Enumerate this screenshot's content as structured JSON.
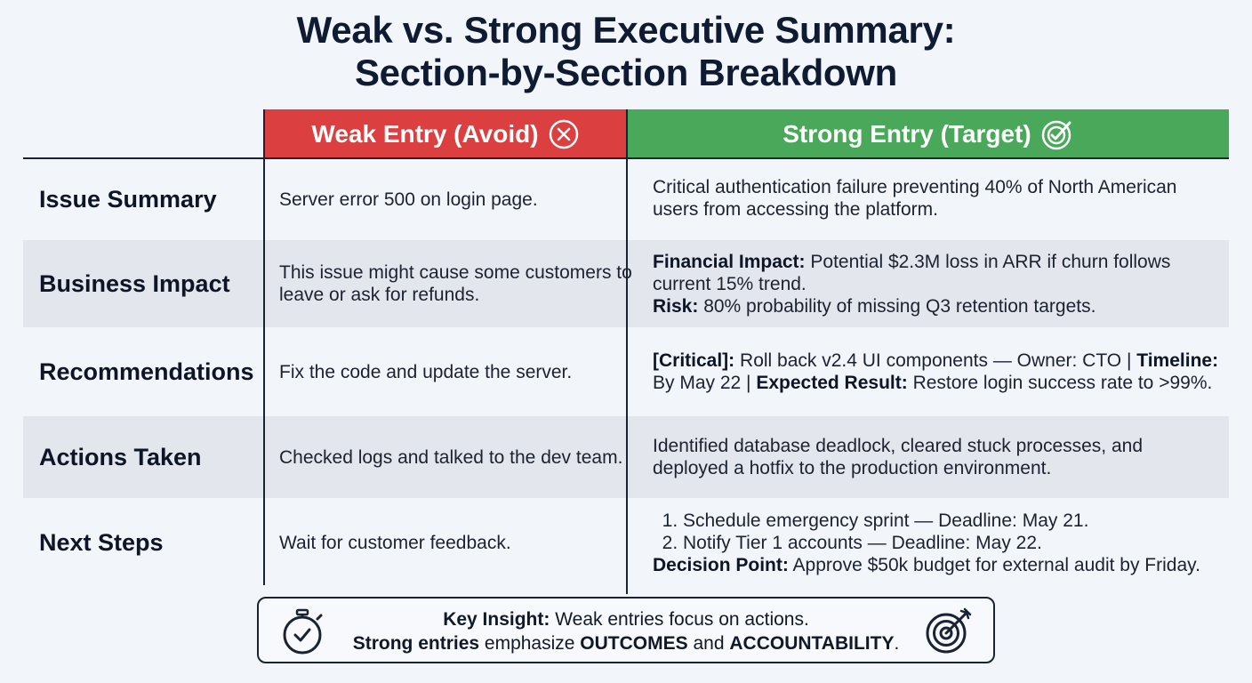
{
  "title": {
    "line1": "Weak vs. Strong Executive Summary:",
    "line2": "Section-by-Section Breakdown"
  },
  "columns": {
    "weak": {
      "label": "Weak Entry (Avoid)",
      "icon": "x-circle-icon",
      "color": "#dc3f3f"
    },
    "strong": {
      "label": "Strong Entry (Target)",
      "icon": "check-target-icon",
      "color": "#49a85a"
    }
  },
  "rows": [
    {
      "label": "Issue Summary",
      "weak": "Server error 500 on login page.",
      "strong": "Critical authentication failure preventing 40% of North American users from accessing the platform."
    },
    {
      "label": "Business Impact",
      "weak": "This issue might cause some customers to leave or ask for refunds.",
      "strong": {
        "financial_label": "Financial Impact:",
        "financial_text": " Potential $2.3M loss in ARR if churn follows current 15% trend.",
        "risk_label": "Risk:",
        "risk_text": " 80% probability of missing Q3 retention targets."
      }
    },
    {
      "label": "Recommendations",
      "weak": "Fix the code and update the server.",
      "strong": {
        "critical_label": "[Critical]:",
        "critical_text": " Roll back v2.4 UI components — Owner: CTO | ",
        "timeline_label": "Timeline:",
        "timeline_text": " By May 22 | ",
        "result_label": "Expected Result:",
        "result_text": " Restore login success rate to >99%."
      }
    },
    {
      "label": "Actions Taken",
      "weak": "Checked logs and talked to the dev team.",
      "strong": "Identified database deadlock, cleared stuck processes, and deployed a hotfix to the production environment."
    },
    {
      "label": "Next Steps",
      "weak": "Wait for customer feedback.",
      "strong": {
        "steps": [
          "Schedule emergency sprint — Deadline: May 21.",
          "Notify Tier 1 accounts — Deadline: May 22."
        ],
        "decision_label": "Decision Point:",
        "decision_text": " Approve $50k budget for external audit by Friday."
      }
    }
  ],
  "insight": {
    "label": "Key Insight:",
    "line1": " Weak entries focus on actions.",
    "strong_label": "Strong entries",
    "mid": " emphasize ",
    "outcomes": "OUTCOMES",
    "and": " and ",
    "accountability": "ACCOUNTABILITY",
    "end": ".",
    "left_icon": "stopwatch-icon",
    "right_icon": "target-arrow-icon"
  }
}
